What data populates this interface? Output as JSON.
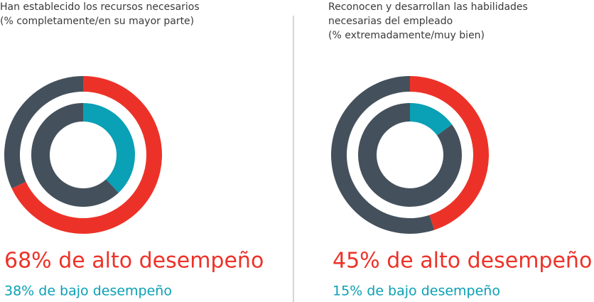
{
  "chart_data": [
    {
      "type": "donut",
      "title": [
        "Han establecido los recursos necesarios",
        "(% completamente/en su mayor parte)"
      ],
      "rest_color": "#44515c",
      "series": [
        {
          "color": "#ec3228",
          "values": [
            68
          ],
          "value_labels": [
            "68% de alto desempeño"
          ]
        },
        {
          "color": "#0aa0b5",
          "values": [
            38
          ],
          "value_labels": [
            "38% de bajo desempeño"
          ]
        }
      ]
    },
    {
      "type": "donut",
      "title": [
        "Reconocen y desarrollan las habilidades",
        "necesarias del empleado",
        "(% extremadamente/muy bien)"
      ],
      "rest_color": "#44515c",
      "series": [
        {
          "color": "#ec3228",
          "values": [
            45
          ],
          "value_labels": [
            "45% de alto desempeño"
          ]
        },
        {
          "color": "#0aa0b5",
          "values": [
            15
          ],
          "value_labels": [
            "15% de bajo desempeño"
          ]
        }
      ]
    }
  ]
}
